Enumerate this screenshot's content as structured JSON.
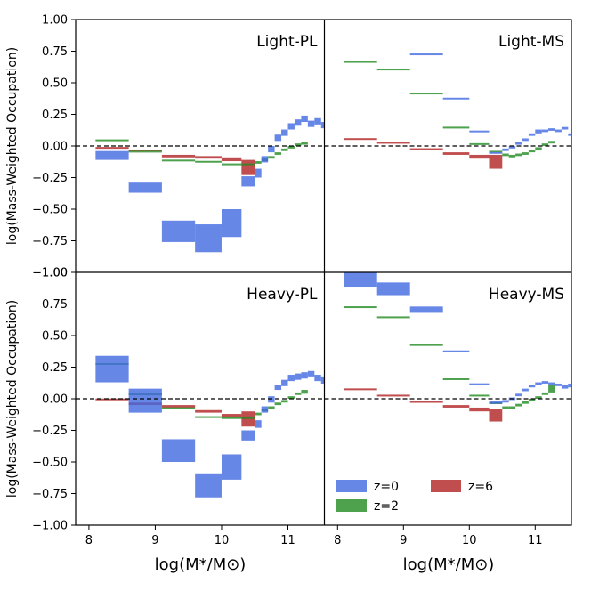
{
  "chart_data": {
    "type": "box-step",
    "x_label": "log(M*/M⊙)",
    "y_label": "log(Mass-Weighted Occupation)",
    "x_range": [
      7.8,
      11.55
    ],
    "y_range": [
      -1.0,
      1.0
    ],
    "x_ticks": [
      8,
      9,
      10,
      11
    ],
    "y_ticks": [
      -1.0,
      -0.75,
      -0.5,
      -0.25,
      0.0,
      0.25,
      0.5,
      0.75,
      1.0
    ],
    "y_tick_labels": [
      "−1.00",
      "−0.75",
      "−0.50",
      "−0.25",
      "0.00",
      "0.25",
      "0.50",
      "0.75",
      "1.00"
    ],
    "reference_line": 0.0,
    "colors": {
      "z=0": "#4169e1",
      "z=2": "#228b22",
      "z=6": "#b22222"
    },
    "legend": [
      {
        "label": "z=0",
        "color": "#4169e1"
      },
      {
        "label": "z=2",
        "color": "#228b22"
      },
      {
        "label": "z=6",
        "color": "#b22222"
      }
    ],
    "panels": [
      {
        "id": "light-pl",
        "title": "Light-PL",
        "series": [
          {
            "name": "z=0",
            "boxes": [
              [
                8.1,
                8.6,
                -0.11,
                -0.04
              ],
              [
                8.6,
                9.1,
                -0.37,
                -0.29
              ],
              [
                9.1,
                9.6,
                -0.76,
                -0.59
              ],
              [
                9.6,
                10.0,
                -0.84,
                -0.62
              ],
              [
                10.0,
                10.3,
                -0.72,
                -0.5
              ],
              [
                10.3,
                10.5,
                -0.32,
                -0.24
              ],
              [
                10.5,
                10.6,
                -0.25,
                -0.18
              ],
              [
                10.6,
                10.7,
                -0.13,
                -0.08
              ],
              [
                10.7,
                10.8,
                -0.05,
                0.0
              ],
              [
                10.8,
                10.9,
                0.04,
                0.09
              ],
              [
                10.9,
                11.0,
                0.08,
                0.13
              ],
              [
                11.0,
                11.1,
                0.13,
                0.18
              ],
              [
                11.1,
                11.2,
                0.16,
                0.21
              ],
              [
                11.2,
                11.3,
                0.19,
                0.24
              ],
              [
                11.3,
                11.4,
                0.15,
                0.2
              ],
              [
                11.4,
                11.5,
                0.17,
                0.22
              ],
              [
                11.5,
                11.6,
                0.14,
                0.19
              ]
            ]
          },
          {
            "name": "z=2",
            "boxes": [
              [
                8.1,
                8.6,
                0.04,
                0.05
              ],
              [
                8.6,
                9.1,
                -0.05,
                -0.04
              ],
              [
                9.1,
                9.6,
                -0.12,
                -0.11
              ],
              [
                9.6,
                10.0,
                -0.13,
                -0.12
              ],
              [
                10.0,
                10.3,
                -0.15,
                -0.14
              ],
              [
                10.3,
                10.5,
                -0.15,
                -0.14
              ],
              [
                10.5,
                10.6,
                -0.14,
                -0.12
              ],
              [
                10.6,
                10.7,
                -0.12,
                -0.1
              ],
              [
                10.7,
                10.8,
                -0.1,
                -0.08
              ],
              [
                10.8,
                10.9,
                -0.07,
                -0.05
              ],
              [
                10.9,
                11.0,
                -0.04,
                -0.02
              ],
              [
                11.0,
                11.1,
                -0.02,
                0.0
              ],
              [
                11.1,
                11.2,
                0.0,
                0.02
              ],
              [
                11.2,
                11.3,
                0.01,
                0.03
              ]
            ]
          },
          {
            "name": "z=6",
            "boxes": [
              [
                8.1,
                8.6,
                -0.02,
                -0.01
              ],
              [
                8.6,
                9.1,
                -0.04,
                -0.03
              ],
              [
                9.1,
                9.6,
                -0.09,
                -0.07
              ],
              [
                9.6,
                10.0,
                -0.1,
                -0.08
              ],
              [
                10.0,
                10.3,
                -0.12,
                -0.09
              ],
              [
                10.3,
                10.5,
                -0.23,
                -0.11
              ]
            ]
          }
        ]
      },
      {
        "id": "light-ms",
        "title": "Light-MS",
        "series": [
          {
            "name": "z=0",
            "boxes": [
              [
                9.1,
                9.6,
                0.72,
                0.73
              ],
              [
                9.6,
                10.0,
                0.37,
                0.38
              ],
              [
                10.0,
                10.3,
                0.11,
                0.12
              ],
              [
                10.3,
                10.5,
                -0.06,
                -0.05
              ],
              [
                10.5,
                10.6,
                -0.04,
                -0.02
              ],
              [
                10.6,
                10.7,
                -0.02,
                0.0
              ],
              [
                10.7,
                10.8,
                0.01,
                0.03
              ],
              [
                10.8,
                10.9,
                0.04,
                0.06
              ],
              [
                10.9,
                11.0,
                0.08,
                0.1
              ],
              [
                11.0,
                11.1,
                0.1,
                0.13
              ],
              [
                11.1,
                11.2,
                0.11,
                0.13
              ],
              [
                11.2,
                11.3,
                0.12,
                0.14
              ],
              [
                11.3,
                11.4,
                0.11,
                0.13
              ],
              [
                11.4,
                11.5,
                0.13,
                0.15
              ],
              [
                11.5,
                11.6,
                0.08,
                0.1
              ]
            ]
          },
          {
            "name": "z=2",
            "boxes": [
              [
                8.1,
                8.6,
                0.66,
                0.67
              ],
              [
                8.6,
                9.1,
                0.6,
                0.61
              ],
              [
                9.1,
                9.6,
                0.41,
                0.42
              ],
              [
                9.6,
                10.0,
                0.14,
                0.15
              ],
              [
                10.0,
                10.3,
                0.01,
                0.02
              ],
              [
                10.3,
                10.5,
                -0.05,
                -0.04
              ],
              [
                10.5,
                10.6,
                -0.08,
                -0.06
              ],
              [
                10.6,
                10.7,
                -0.09,
                -0.07
              ],
              [
                10.7,
                10.8,
                -0.08,
                -0.06
              ],
              [
                10.8,
                10.9,
                -0.07,
                -0.05
              ],
              [
                10.9,
                11.0,
                -0.05,
                -0.03
              ],
              [
                11.0,
                11.1,
                -0.03,
                -0.01
              ],
              [
                11.1,
                11.2,
                0.0,
                0.02
              ],
              [
                11.2,
                11.3,
                0.02,
                0.04
              ]
            ]
          },
          {
            "name": "z=6",
            "boxes": [
              [
                8.1,
                8.6,
                0.05,
                0.06
              ],
              [
                8.6,
                9.1,
                0.02,
                0.03
              ],
              [
                9.1,
                9.6,
                -0.03,
                -0.02
              ],
              [
                9.6,
                10.0,
                -0.07,
                -0.05
              ],
              [
                10.0,
                10.3,
                -0.1,
                -0.07
              ],
              [
                10.3,
                10.5,
                -0.18,
                -0.07
              ]
            ]
          }
        ]
      },
      {
        "id": "heavy-pl",
        "title": "Heavy-PL",
        "series": [
          {
            "name": "z=0",
            "boxes": [
              [
                8.1,
                8.6,
                0.13,
                0.34
              ],
              [
                8.6,
                9.1,
                -0.11,
                0.08
              ],
              [
                9.1,
                9.6,
                -0.5,
                -0.32
              ],
              [
                9.6,
                10.0,
                -0.78,
                -0.59
              ],
              [
                10.0,
                10.3,
                -0.64,
                -0.44
              ],
              [
                10.3,
                10.5,
                -0.33,
                -0.25
              ],
              [
                10.5,
                10.6,
                -0.23,
                -0.17
              ],
              [
                10.6,
                10.7,
                -0.11,
                -0.06
              ],
              [
                10.7,
                10.8,
                -0.03,
                0.02
              ],
              [
                10.8,
                10.9,
                0.07,
                0.11
              ],
              [
                10.9,
                11.0,
                0.1,
                0.15
              ],
              [
                11.0,
                11.1,
                0.14,
                0.19
              ],
              [
                11.1,
                11.2,
                0.15,
                0.2
              ],
              [
                11.2,
                11.3,
                0.16,
                0.21
              ],
              [
                11.3,
                11.4,
                0.17,
                0.22
              ],
              [
                11.4,
                11.5,
                0.14,
                0.19
              ],
              [
                11.5,
                11.6,
                0.12,
                0.17
              ]
            ]
          },
          {
            "name": "z=2",
            "boxes": [
              [
                8.1,
                8.6,
                0.27,
                0.28
              ],
              [
                8.6,
                9.1,
                0.03,
                0.04
              ],
              [
                9.1,
                9.6,
                -0.08,
                -0.07
              ],
              [
                9.6,
                10.0,
                -0.15,
                -0.14
              ],
              [
                10.0,
                10.3,
                -0.16,
                -0.14
              ],
              [
                10.3,
                10.5,
                -0.16,
                -0.14
              ],
              [
                10.5,
                10.6,
                -0.13,
                -0.11
              ],
              [
                10.6,
                10.7,
                -0.1,
                -0.08
              ],
              [
                10.7,
                10.8,
                -0.08,
                -0.06
              ],
              [
                10.8,
                10.9,
                -0.05,
                -0.03
              ],
              [
                10.9,
                11.0,
                -0.03,
                -0.01
              ],
              [
                11.0,
                11.1,
                0.0,
                0.02
              ],
              [
                11.1,
                11.2,
                0.03,
                0.05
              ],
              [
                11.2,
                11.3,
                0.04,
                0.07
              ]
            ]
          },
          {
            "name": "z=6",
            "boxes": [
              [
                8.1,
                8.6,
                -0.01,
                0.0
              ],
              [
                8.6,
                9.1,
                -0.05,
                -0.03
              ],
              [
                9.1,
                9.6,
                -0.07,
                -0.05
              ],
              [
                9.6,
                10.0,
                -0.11,
                -0.09
              ],
              [
                10.0,
                10.3,
                -0.15,
                -0.12
              ],
              [
                10.3,
                10.5,
                -0.22,
                -0.1
              ]
            ]
          }
        ]
      },
      {
        "id": "heavy-ms",
        "title": "Heavy-MS",
        "series": [
          {
            "name": "z=0",
            "boxes": [
              [
                8.1,
                8.6,
                0.88,
                1.0
              ],
              [
                8.6,
                9.1,
                0.82,
                0.92
              ],
              [
                9.1,
                9.6,
                0.68,
                0.73
              ],
              [
                9.6,
                10.0,
                0.37,
                0.38
              ],
              [
                10.0,
                10.3,
                0.11,
                0.12
              ],
              [
                10.3,
                10.5,
                -0.04,
                -0.02
              ],
              [
                10.5,
                10.6,
                -0.03,
                -0.01
              ],
              [
                10.6,
                10.7,
                -0.01,
                0.01
              ],
              [
                10.7,
                10.8,
                0.02,
                0.04
              ],
              [
                10.8,
                10.9,
                0.06,
                0.08
              ],
              [
                10.9,
                11.0,
                0.09,
                0.11
              ],
              [
                11.0,
                11.1,
                0.11,
                0.13
              ],
              [
                11.1,
                11.2,
                0.12,
                0.14
              ],
              [
                11.2,
                11.3,
                0.11,
                0.13
              ],
              [
                11.3,
                11.4,
                0.1,
                0.12
              ],
              [
                11.4,
                11.5,
                0.08,
                0.11
              ],
              [
                11.5,
                11.6,
                0.09,
                0.12
              ]
            ]
          },
          {
            "name": "z=2",
            "boxes": [
              [
                8.1,
                8.6,
                0.72,
                0.73
              ],
              [
                8.6,
                9.1,
                0.64,
                0.65
              ],
              [
                9.1,
                9.6,
                0.42,
                0.43
              ],
              [
                9.6,
                10.0,
                0.15,
                0.16
              ],
              [
                10.0,
                10.3,
                0.02,
                0.03
              ],
              [
                10.3,
                10.5,
                -0.04,
                -0.03
              ],
              [
                10.5,
                10.6,
                -0.08,
                -0.06
              ],
              [
                10.6,
                10.7,
                -0.08,
                -0.06
              ],
              [
                10.7,
                10.8,
                -0.06,
                -0.04
              ],
              [
                10.8,
                10.9,
                -0.04,
                -0.02
              ],
              [
                10.9,
                11.0,
                -0.02,
                0.0
              ],
              [
                11.0,
                11.1,
                0.0,
                0.02
              ],
              [
                11.1,
                11.2,
                0.03,
                0.05
              ],
              [
                11.2,
                11.3,
                0.05,
                0.11
              ]
            ]
          },
          {
            "name": "z=6",
            "boxes": [
              [
                8.1,
                8.6,
                0.07,
                0.08
              ],
              [
                8.6,
                9.1,
                0.02,
                0.03
              ],
              [
                9.1,
                9.6,
                -0.03,
                -0.02
              ],
              [
                9.6,
                10.0,
                -0.07,
                -0.05
              ],
              [
                10.0,
                10.3,
                -0.1,
                -0.07
              ],
              [
                10.3,
                10.5,
                -0.18,
                -0.08
              ]
            ]
          }
        ]
      }
    ]
  }
}
